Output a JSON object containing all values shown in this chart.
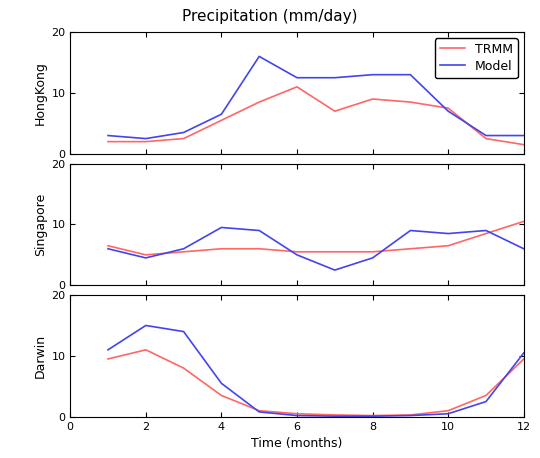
{
  "title": "Precipitation (mm/day)",
  "xlabel": "Time (months)",
  "ylim": [
    0,
    20
  ],
  "xlim": [
    0,
    12
  ],
  "yticks": [
    0,
    10,
    20
  ],
  "xticks": [
    0,
    2,
    4,
    6,
    8,
    10,
    12
  ],
  "locations": [
    "HongKong",
    "Singapore",
    "Darwin"
  ],
  "legend_labels": [
    "TRMM",
    "Model"
  ],
  "trmm_color": "#FF6666",
  "model_color": "#4444EE",
  "months": [
    1,
    2,
    3,
    4,
    5,
    6,
    7,
    8,
    9,
    10,
    11,
    12
  ],
  "trmm": {
    "HongKong": [
      2.0,
      2.0,
      2.5,
      5.5,
      8.5,
      11.0,
      7.0,
      9.0,
      8.5,
      7.5,
      2.5,
      1.5
    ],
    "Singapore": [
      6.5,
      5.0,
      5.5,
      6.0,
      6.0,
      5.5,
      5.5,
      5.5,
      6.0,
      6.5,
      8.5,
      10.5
    ],
    "Darwin": [
      9.5,
      11.0,
      8.0,
      3.5,
      1.0,
      0.5,
      0.3,
      0.2,
      0.3,
      1.0,
      3.5,
      9.5
    ]
  },
  "model": {
    "HongKong": [
      3.0,
      2.5,
      3.5,
      6.5,
      16.0,
      12.5,
      12.5,
      13.0,
      13.0,
      7.0,
      3.0,
      3.0
    ],
    "Singapore": [
      6.0,
      4.5,
      6.0,
      9.5,
      9.0,
      5.0,
      2.5,
      4.5,
      9.0,
      8.5,
      9.0,
      6.0
    ],
    "Darwin": [
      11.0,
      15.0,
      14.0,
      5.5,
      0.8,
      0.2,
      0.1,
      0.1,
      0.2,
      0.5,
      2.5,
      10.5
    ]
  },
  "figsize": [
    5.4,
    4.58
  ],
  "dpi": 100,
  "title_fontsize": 11,
  "label_fontsize": 9,
  "tick_fontsize": 8,
  "legend_fontsize": 9,
  "linewidth": 1.2,
  "bg_color": "#ffffff"
}
